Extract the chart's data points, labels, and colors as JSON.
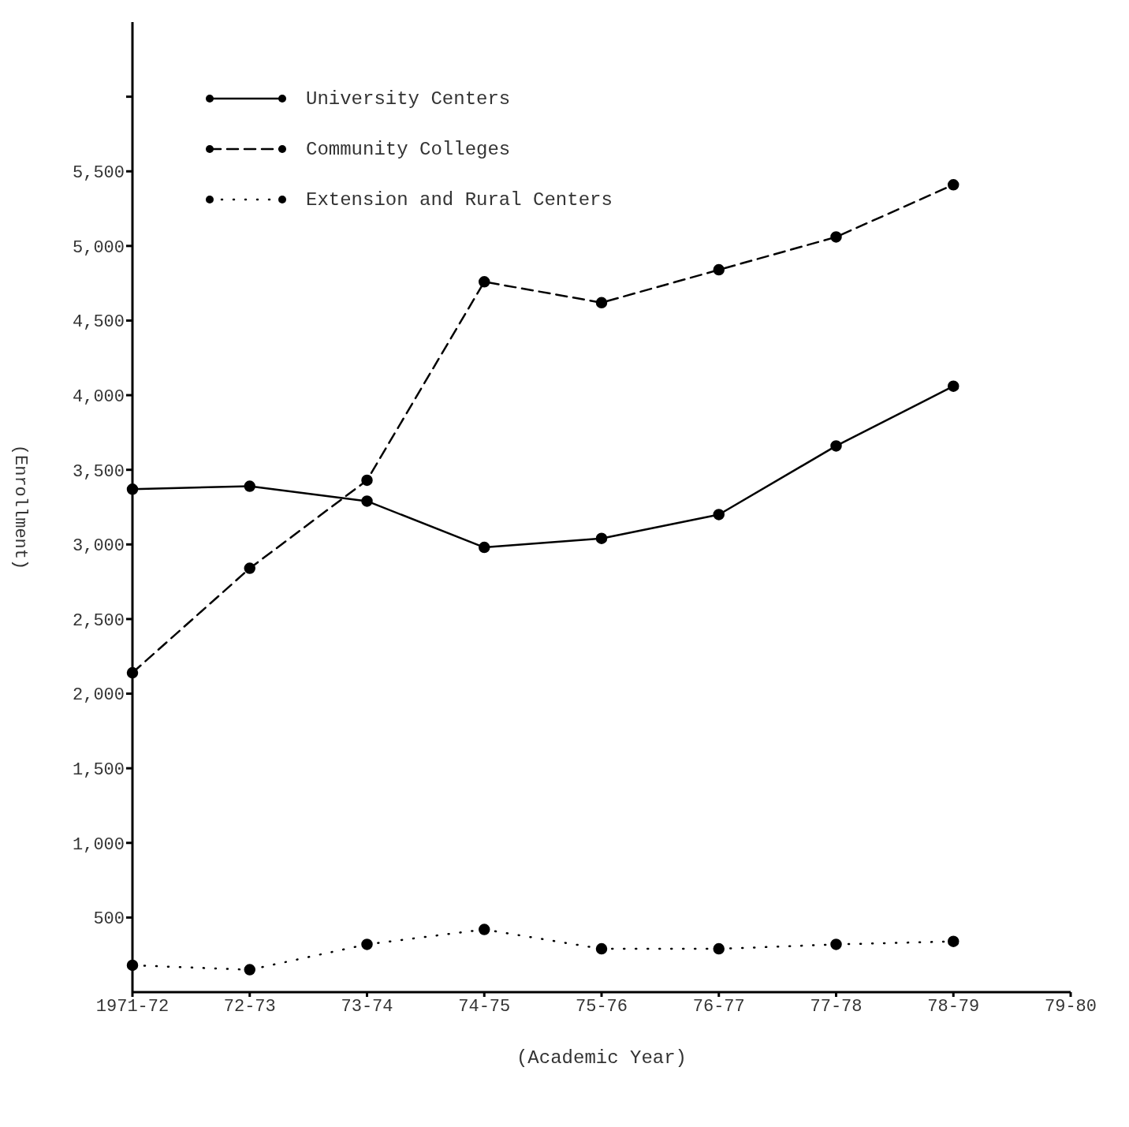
{
  "chart_data": {
    "type": "line",
    "xlabel": "(Academic Year)",
    "ylabel": "(Enrollment)",
    "categories": [
      "1971-72",
      "72-73",
      "73-74",
      "74-75",
      "75-76",
      "76-77",
      "77-78",
      "78-79",
      "79-80"
    ],
    "series": [
      {
        "name": "University Centers",
        "color": "#000000",
        "line_style": "solid",
        "values": [
          3370,
          3390,
          3290,
          2980,
          3040,
          3200,
          3660,
          4060,
          null
        ]
      },
      {
        "name": "Community Colleges",
        "color": "#000000",
        "line_style": "dashed",
        "values": [
          2140,
          2840,
          3430,
          4760,
          4620,
          4840,
          5060,
          5410,
          null
        ]
      },
      {
        "name": "Extension and Rural Centers",
        "color": "#000000",
        "line_style": "dotted",
        "values": [
          180,
          150,
          320,
          420,
          290,
          290,
          320,
          340,
          null
        ]
      }
    ],
    "ylim": [
      0,
      6500
    ],
    "yticks": [
      {
        "value": 500,
        "label": "500"
      },
      {
        "value": 1000,
        "label": "1,000"
      },
      {
        "value": 1500,
        "label": "1,500"
      },
      {
        "value": 2000,
        "label": "2,000"
      },
      {
        "value": 2500,
        "label": "2,500"
      },
      {
        "value": 3000,
        "label": "3,000"
      },
      {
        "value": 3500,
        "label": "3,500"
      },
      {
        "value": 4000,
        "label": "4,000"
      },
      {
        "value": 4500,
        "label": "4,500"
      },
      {
        "value": 5000,
        "label": "5,000"
      },
      {
        "value": 5500,
        "label": "5,500"
      },
      {
        "value": 6000,
        "label": null
      }
    ],
    "marker": "circle",
    "grid": false,
    "legend": "top left"
  }
}
